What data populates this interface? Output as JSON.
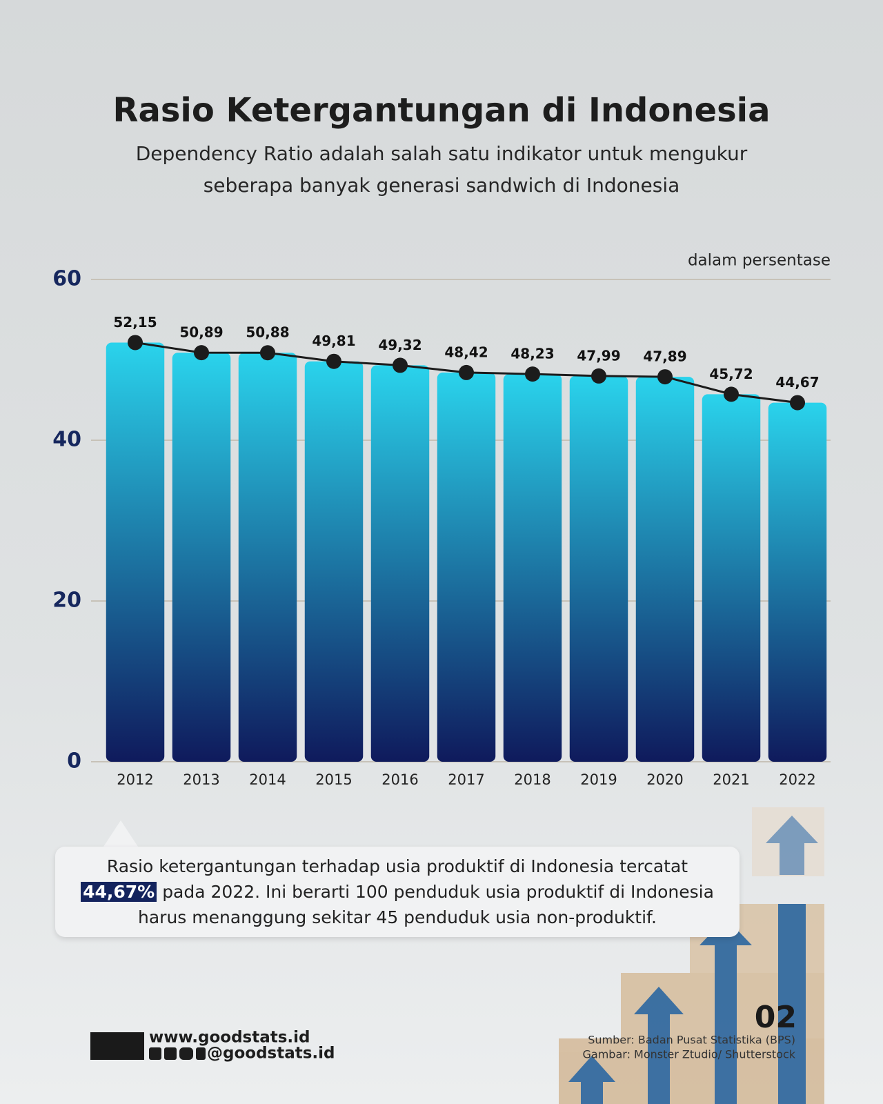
{
  "chart_data": {
    "type": "bar",
    "title": "Rasio Ketergantungan di Indonesia",
    "subtitle": [
      "Dependency Ratio adalah salah satu indikator untuk mengukur",
      "seberapa banyak generasi sandwich di Indonesia"
    ],
    "unit_label": "dalam persentase",
    "categories": [
      "2012",
      "2013",
      "2014",
      "2015",
      "2016",
      "2017",
      "2018",
      "2019",
      "2020",
      "2021",
      "2022"
    ],
    "values": [
      52.15,
      50.89,
      50.88,
      49.81,
      49.32,
      48.42,
      48.23,
      47.99,
      47.89,
      45.72,
      44.67
    ],
    "value_labels": [
      "52,15",
      "50,89",
      "50,88",
      "49,81",
      "49,32",
      "48,42",
      "48,23",
      "47,99",
      "47,89",
      "45,72",
      "44,67"
    ],
    "bar_gradient": [
      "#2ad3ec",
      "#0f1a5c"
    ],
    "line": true,
    "line_color": "#1c1c1c",
    "ylim": [
      0,
      60
    ],
    "yticks": [
      0,
      20,
      40,
      60
    ],
    "grid": true
  },
  "callout": {
    "line1": "Rasio ketergantungan terhadap usia produktif di Indonesia tercatat",
    "highlight": "44,67%",
    "line2": "pada 2022. Ini berarti 100 penduduk usia produktif di Indonesia",
    "line3": "harus menanggung sekitar 45 penduduk usia non-produktif."
  },
  "footer": {
    "website": "www.goodstats.id",
    "handle": "@goodstats.id",
    "page": "02",
    "source": "Sumber: Badan Pusat Statistika (BPS)",
    "image_credit": "Gambar: Monster Ztudio/ Shutterstock"
  }
}
